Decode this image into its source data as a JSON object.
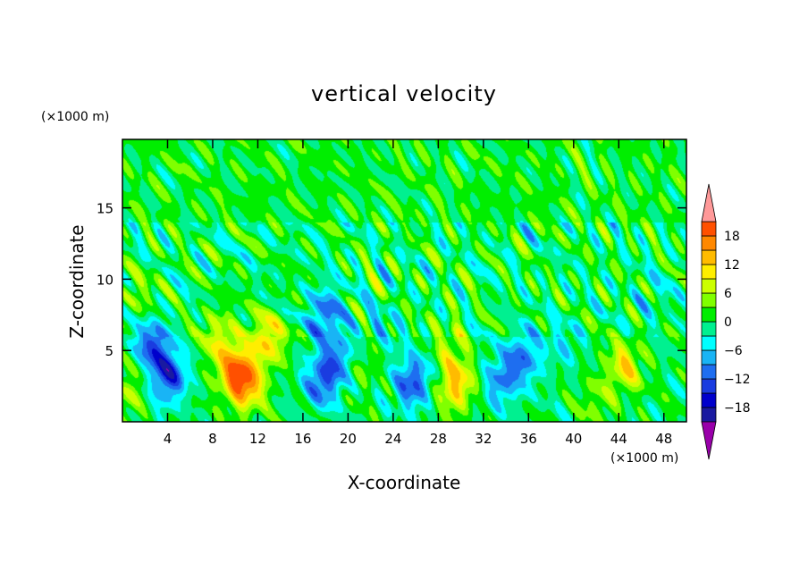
{
  "chart_data": {
    "type": "heatmap",
    "title": "vertical velocity",
    "xlabel": "X-coordinate",
    "ylabel": "Z-coordinate",
    "x_unit": "(×1000 m)",
    "y_unit": "(×1000 m)",
    "xlim": [
      0,
      50
    ],
    "ylim": [
      0,
      19.8
    ],
    "x_ticks": [
      4,
      8,
      12,
      16,
      20,
      24,
      28,
      32,
      36,
      40,
      44,
      48
    ],
    "y_ticks": [
      5,
      10,
      15
    ],
    "x_tick_labels": [
      "4",
      "8",
      "12",
      "16",
      "20",
      "24",
      "28",
      "32",
      "36",
      "40",
      "44",
      "48"
    ],
    "y_tick_labels": [
      "5",
      "10",
      "15"
    ],
    "colorbar": {
      "levels": [
        -21,
        -18,
        -15,
        -12,
        -9,
        -6,
        -3,
        0,
        3,
        6,
        9,
        12,
        15,
        18,
        21
      ],
      "tick_values": [
        -18,
        -12,
        -6,
        0,
        6,
        12,
        18
      ],
      "tick_labels": [
        "−18",
        "−12",
        "−6",
        "0",
        "6",
        "12",
        "18"
      ],
      "colors": [
        "#330099",
        "#1a1aa0",
        "#0000cc",
        "#1a3ce0",
        "#1e6ef0",
        "#19b4f5",
        "#00ffff",
        "#00f090",
        "#00ee00",
        "#80ff00",
        "#ccff00",
        "#ffee00",
        "#ffbb00",
        "#ff8800",
        "#ff5000",
        "#ff1e1e"
      ],
      "under_color": "#9900aa",
      "over_color": "#ff9999"
    },
    "features": [
      {
        "x": 2.5,
        "z": 5.4,
        "value": -12
      },
      {
        "x": 4.0,
        "z": 3.2,
        "value": -15
      },
      {
        "x": 0.8,
        "z": 2.5,
        "value": 6
      },
      {
        "x": 10.0,
        "z": 3.6,
        "value": 14
      },
      {
        "x": 12.8,
        "z": 5.8,
        "value": 11
      },
      {
        "x": 8.5,
        "z": 6.0,
        "value": 8
      },
      {
        "x": 11.0,
        "z": 2.5,
        "value": 12
      },
      {
        "x": 18.0,
        "z": 7.6,
        "value": -11
      },
      {
        "x": 17.8,
        "z": 3.0,
        "value": -13
      },
      {
        "x": 19.5,
        "z": 4.8,
        "value": -8
      },
      {
        "x": 21.0,
        "z": 4.2,
        "value": 5
      },
      {
        "x": 25.7,
        "z": 2.8,
        "value": -13
      },
      {
        "x": 29.5,
        "z": 2.6,
        "value": 13
      },
      {
        "x": 29.0,
        "z": 5.5,
        "value": 5
      },
      {
        "x": 33.5,
        "z": 2.8,
        "value": -9
      },
      {
        "x": 35.5,
        "z": 4.6,
        "value": -10
      },
      {
        "x": 39.0,
        "z": 5.5,
        "value": -4
      },
      {
        "x": 44.5,
        "z": 3.9,
        "value": 10
      },
      {
        "x": 42.0,
        "z": 1.5,
        "value": 4
      },
      {
        "x": 23.0,
        "z": 6.5,
        "value": -4
      },
      {
        "x": 1.5,
        "z": 9.0,
        "value": 4
      },
      {
        "x": 47.0,
        "z": 8.5,
        "value": -3
      }
    ]
  }
}
